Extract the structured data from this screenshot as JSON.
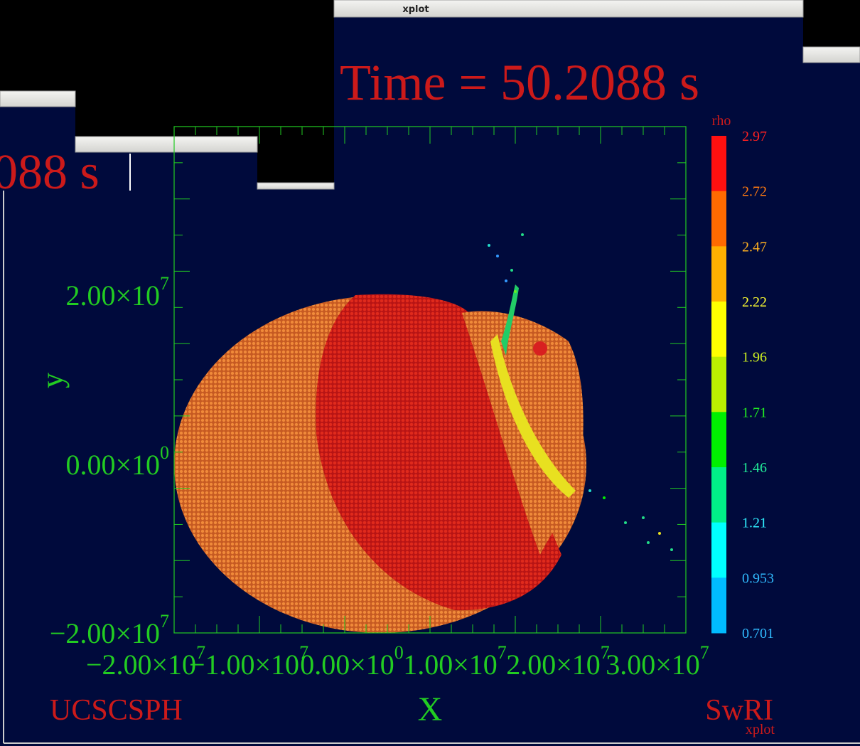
{
  "windows": {
    "main_title": "xplot",
    "back_fragment": "088 s"
  },
  "plot": {
    "title": "Time = 50.2088 s",
    "colorbar_label": "rho",
    "colorbar_ticks": [
      "2.97",
      "2.72",
      "2.47",
      "2.22",
      "1.96",
      "1.71",
      "1.46",
      "1.21",
      "0.953",
      "0.701"
    ],
    "y_label": "y",
    "x_label": "X",
    "y_ticks": [
      {
        "base": "2.00×10",
        "exp": "7"
      },
      {
        "base": "0.00×10",
        "exp": "0"
      },
      {
        "base": "−2.00×10",
        "exp": "7"
      }
    ],
    "x_ticks": [
      {
        "base": "−2.00×10",
        "exp": "7"
      },
      {
        "base": "−1.00×10",
        "exp": "7"
      },
      {
        "base": "0.00×10",
        "exp": "0"
      },
      {
        "base": "1.00×10",
        "exp": "7"
      },
      {
        "base": "2.00×10",
        "exp": "7"
      },
      {
        "base": "3.00×10",
        "exp": "7"
      }
    ],
    "footer_left": "UCSCSPH",
    "footer_right": "SwRI",
    "footer_small": "xplot"
  }
}
